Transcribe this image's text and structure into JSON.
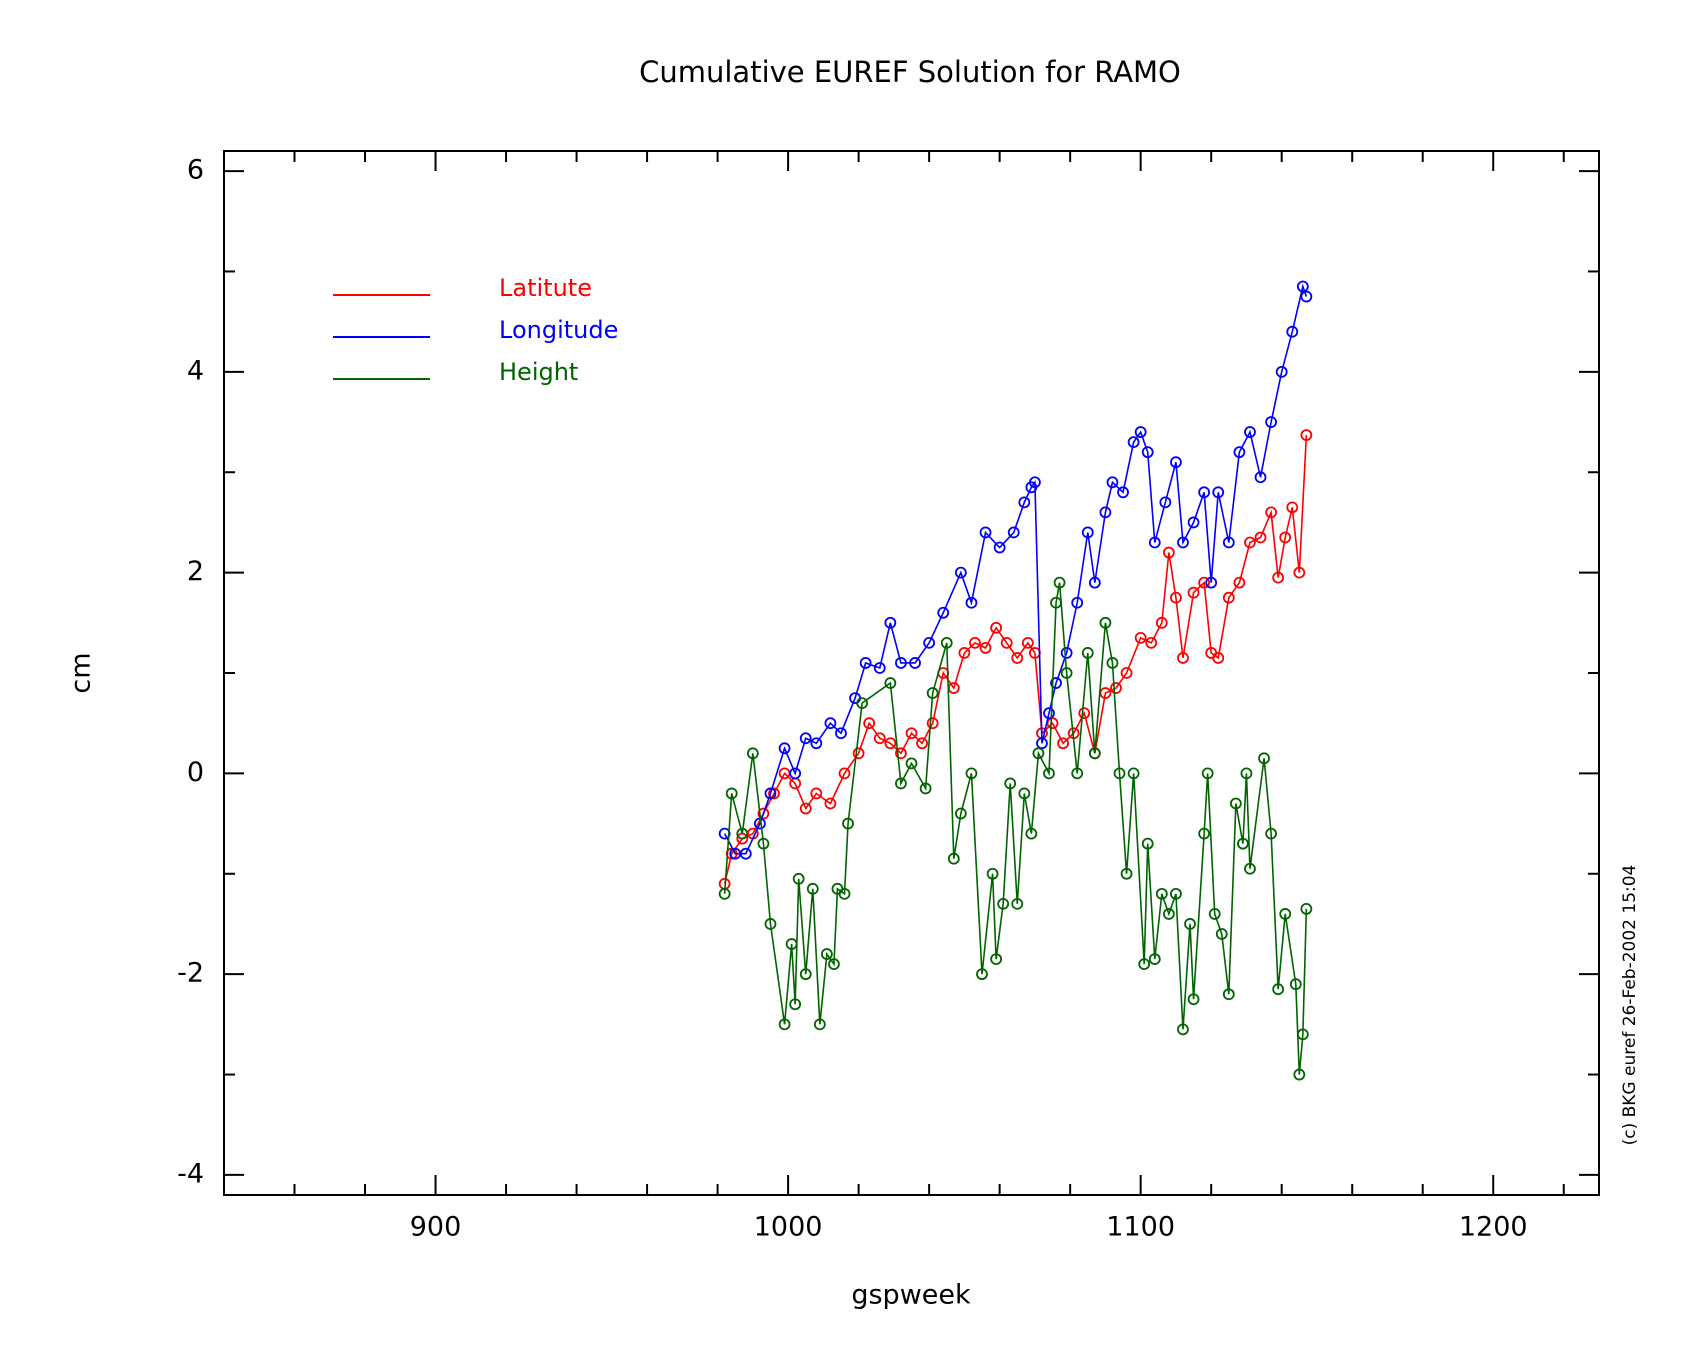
{
  "chart_data": {
    "type": "line",
    "title": "Cumulative EUREF Solution for RAMO",
    "xlabel": "gspweek",
    "ylabel": "cm",
    "annotation": "(c) BKG euref 26-Feb-2002 15:04",
    "xlim": [
      840,
      1230
    ],
    "xticks": [
      900,
      1000,
      1100,
      1200
    ],
    "xminor_ticks": [
      860,
      880,
      920,
      940,
      960,
      980,
      1020,
      1040,
      1060,
      1080,
      1120,
      1140,
      1160,
      1180,
      1220
    ],
    "ylim": [
      -4.2,
      6.2
    ],
    "yticks": [
      -4,
      -2,
      0,
      2,
      4,
      6
    ],
    "yminor_ticks": [
      -3,
      -1,
      1,
      3,
      5
    ],
    "legend": "upper left",
    "series": [
      {
        "name": "Latitute",
        "color": "#ff0000",
        "x": [
          982,
          984,
          987,
          990,
          993,
          996,
          999,
          1002,
          1005,
          1008,
          1012,
          1016,
          1020,
          1023,
          1026,
          1029,
          1032,
          1035,
          1038,
          1041,
          1044,
          1047,
          1050,
          1053,
          1056,
          1059,
          1062,
          1065,
          1068,
          1070,
          1072,
          1075,
          1078,
          1081,
          1084,
          1087,
          1090,
          1093,
          1096,
          1100,
          1103,
          1106,
          1108,
          1110,
          1112,
          1115,
          1118,
          1120,
          1122,
          1125,
          1128,
          1131,
          1134,
          1137,
          1139,
          1141,
          1143,
          1145,
          1147
        ],
        "values": [
          -1.1,
          -0.8,
          -0.65,
          -0.6,
          -0.4,
          -0.2,
          0.0,
          -0.1,
          -0.35,
          -0.2,
          -0.3,
          0.0,
          0.2,
          0.5,
          0.35,
          0.3,
          0.2,
          0.4,
          0.3,
          0.5,
          1.0,
          0.85,
          1.2,
          1.3,
          1.25,
          1.45,
          1.3,
          1.15,
          1.3,
          1.2,
          0.4,
          0.5,
          0.3,
          0.4,
          0.6,
          0.2,
          0.8,
          0.85,
          1.0,
          1.35,
          1.3,
          1.5,
          2.2,
          1.75,
          1.15,
          1.8,
          1.9,
          1.2,
          1.15,
          1.75,
          1.9,
          2.3,
          2.35,
          2.6,
          1.95,
          2.35,
          2.65,
          2.0,
          3.37
        ]
      },
      {
        "name": "Longitude",
        "color": "#0000ff",
        "x": [
          982,
          985,
          988,
          992,
          995,
          999,
          1002,
          1005,
          1008,
          1012,
          1015,
          1019,
          1022,
          1026,
          1029,
          1032,
          1036,
          1040,
          1044,
          1049,
          1052,
          1056,
          1060,
          1064,
          1067,
          1069,
          1070,
          1072,
          1074,
          1076,
          1079,
          1082,
          1085,
          1087,
          1090,
          1092,
          1095,
          1098,
          1100,
          1102,
          1104,
          1107,
          1110,
          1112,
          1115,
          1118,
          1120,
          1122,
          1125,
          1128,
          1131,
          1134,
          1137,
          1140,
          1143,
          1146,
          1147
        ],
        "values": [
          -0.6,
          -0.8,
          -0.8,
          -0.5,
          -0.2,
          0.25,
          0.0,
          0.35,
          0.3,
          0.5,
          0.4,
          0.75,
          1.1,
          1.05,
          1.5,
          1.1,
          1.1,
          1.3,
          1.6,
          2.0,
          1.7,
          2.4,
          2.25,
          2.4,
          2.7,
          2.85,
          2.9,
          0.3,
          0.6,
          0.9,
          1.2,
          1.7,
          2.4,
          1.9,
          2.6,
          2.9,
          2.8,
          3.3,
          3.4,
          3.2,
          2.3,
          2.7,
          3.1,
          2.3,
          2.5,
          2.8,
          1.9,
          2.8,
          2.3,
          3.2,
          3.4,
          2.95,
          3.5,
          4.0,
          4.4,
          4.85,
          4.75
        ]
      },
      {
        "name": "Height",
        "color": "#006400",
        "x": [
          982,
          984,
          987,
          990,
          993,
          995,
          999,
          1001,
          1002,
          1003,
          1005,
          1007,
          1009,
          1011,
          1013,
          1014,
          1016,
          1017,
          1021,
          1029,
          1032,
          1035,
          1039,
          1041,
          1045,
          1047,
          1049,
          1052,
          1055,
          1058,
          1059,
          1061,
          1063,
          1065,
          1067,
          1069,
          1071,
          1074,
          1076,
          1077,
          1079,
          1082,
          1085,
          1087,
          1090,
          1092,
          1094,
          1096,
          1098,
          1101,
          1102,
          1104,
          1106,
          1108,
          1110,
          1112,
          1114,
          1115,
          1118,
          1119,
          1121,
          1123,
          1125,
          1127,
          1129,
          1130,
          1131,
          1135,
          1137,
          1139,
          1141,
          1144,
          1145,
          1146,
          1147
        ],
        "values": [
          -1.2,
          -0.2,
          -0.6,
          0.2,
          -0.7,
          -1.5,
          -2.5,
          -1.7,
          -2.3,
          -1.05,
          -2.0,
          -1.15,
          -2.5,
          -1.8,
          -1.9,
          -1.15,
          -1.2,
          -0.5,
          0.7,
          0.9,
          -0.1,
          0.1,
          -0.15,
          0.8,
          1.3,
          -0.85,
          -0.4,
          0.0,
          -2.0,
          -1.0,
          -1.85,
          -1.3,
          -0.1,
          -1.3,
          -0.2,
          -0.6,
          0.2,
          0.0,
          1.7,
          1.9,
          1.0,
          0.0,
          1.2,
          0.2,
          1.5,
          1.1,
          0.0,
          -1.0,
          0.0,
          -1.9,
          -0.7,
          -1.85,
          -1.2,
          -1.4,
          -1.2,
          -2.55,
          -1.5,
          -2.25,
          -0.6,
          0.0,
          -1.4,
          -1.6,
          -2.2,
          -0.3,
          -0.7,
          0.0,
          -0.95,
          0.15,
          -0.6,
          -2.15,
          -1.4,
          -2.1,
          -3.0,
          -2.6,
          -1.35
        ]
      }
    ]
  }
}
